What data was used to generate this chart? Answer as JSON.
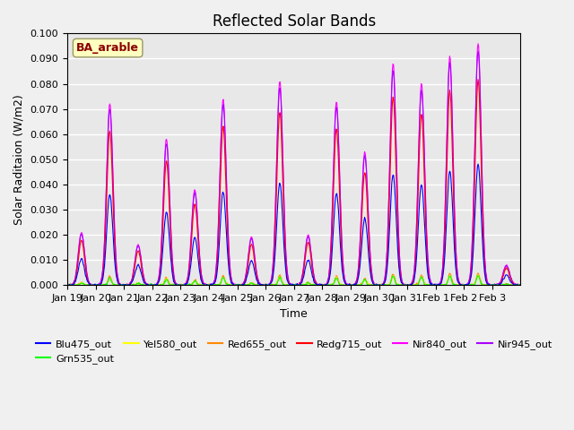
{
  "title": "Reflected Solar Bands",
  "xlabel": "Time",
  "ylabel": "Solar Raditaion (W/m2)",
  "annotation": "BA_arable",
  "ylim": [
    0,
    0.1
  ],
  "yticks": [
    0.0,
    0.01,
    0.02,
    0.03,
    0.04,
    0.05,
    0.06,
    0.07,
    0.08,
    0.09,
    0.1
  ],
  "x_tick_labels": [
    "Jan 19",
    "Jan 20",
    "Jan 21",
    "Jan 22",
    "Jan 23",
    "Jan 24",
    "Jan 25",
    "Jan 26",
    "Jan 27",
    "Jan 28",
    "Jan 29",
    "Jan 30",
    "Jan 31",
    "Feb 1",
    "Feb 2",
    "Feb 3"
  ],
  "series_colors": {
    "Blu475_out": "#0000ff",
    "Grn535_out": "#00ff00",
    "Yel580_out": "#ffff00",
    "Red655_out": "#ff8800",
    "Redg715_out": "#ff0000",
    "Nir840_out": "#ff00ff",
    "Nir945_out": "#aa00ff"
  },
  "background_color": "#e8e8e8",
  "grid_color": "#ffffff",
  "title_fontsize": 12,
  "axis_fontsize": 9,
  "tick_fontsize": 8,
  "nir840_peaks": [
    0.021,
    0.072,
    0.016,
    0.058,
    0.038,
    0.074,
    0.019,
    0.081,
    0.02,
    0.073,
    0.053,
    0.088,
    0.08,
    0.091,
    0.096,
    0.008
  ],
  "nir945_ratio": 0.97,
  "redg715_ratio": 0.85,
  "red655_ratio": 0.05,
  "yel580_ratio": 0.04,
  "grn535_ratio": 0.04,
  "blu475_ratio": 0.5
}
